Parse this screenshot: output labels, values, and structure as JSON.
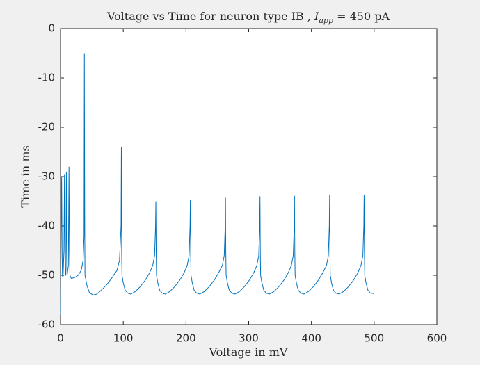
{
  "chart_data": {
    "type": "line",
    "title": [
      "Voltage vs Time for neuron type IB , ",
      "I",
      "app",
      " = 450 pA"
    ],
    "xlabel": "Voltage in mV",
    "ylabel": "Time in ms",
    "xlim": [
      0,
      600
    ],
    "xticks": [
      0,
      100,
      200,
      300,
      400,
      500,
      600
    ],
    "ylim": [
      -60,
      0
    ],
    "yticks": [
      -60,
      -50,
      -40,
      -30,
      -20,
      -10,
      0
    ],
    "grid": false,
    "series": [
      {
        "color": "#0072bd",
        "x": [
          0,
          0.5,
          1,
          1.8,
          2.5,
          3,
          4,
          5.5,
          6.3,
          7,
          7.5,
          8.5,
          9.3,
          10,
          10.5,
          12.5,
          13.5,
          14.3,
          15,
          17,
          22,
          28,
          33,
          36,
          37.5,
          38,
          38.6,
          39,
          42,
          46,
          52,
          58,
          65,
          73,
          82,
          90,
          94,
          96.5,
          97,
          97.5,
          98,
          100,
          103,
          107,
          112,
          119,
          127,
          135,
          142,
          147,
          150,
          151.5,
          152,
          152.5,
          153,
          155,
          158,
          162,
          167,
          174,
          182,
          190,
          197,
          202,
          205,
          206.5,
          207,
          207.5,
          208,
          210,
          213,
          217,
          222,
          229,
          237,
          245,
          252,
          258,
          261,
          262.5,
          263,
          263.5,
          264,
          266,
          269,
          273,
          278,
          285,
          293,
          301,
          308,
          313,
          316,
          317.5,
          318,
          318.5,
          319,
          321,
          324,
          328,
          333,
          340,
          348,
          356,
          363,
          368,
          371,
          372.5,
          373,
          373.5,
          374,
          376,
          379,
          383,
          388,
          395,
          403,
          411,
          418,
          424,
          427,
          428.5,
          429,
          429.5,
          430,
          432,
          435,
          439,
          444,
          451,
          459,
          467,
          474,
          479,
          482,
          483.5,
          484,
          484.5,
          485,
          487,
          490,
          494,
          500
        ],
        "values": [
          -58,
          -50,
          -40,
          -30,
          -45,
          -50,
          -50.5,
          -45,
          -29.5,
          -45,
          -50,
          -50,
          -29,
          -45,
          -50,
          -48,
          -28,
          -45,
          -50,
          -50.6,
          -50.5,
          -50,
          -49,
          -47,
          -42,
          -5,
          -40,
          -50,
          -52,
          -53.5,
          -54,
          -53.8,
          -53,
          -52,
          -50.5,
          -49,
          -47,
          -40,
          -24,
          -45,
          -50,
          -51.5,
          -53,
          -53.6,
          -53.8,
          -53.3,
          -52.3,
          -51,
          -49.5,
          -48,
          -46,
          -40,
          -35,
          -45,
          -50,
          -51.5,
          -53,
          -53.6,
          -53.8,
          -53.3,
          -52.3,
          -51,
          -49.5,
          -48,
          -46,
          -40,
          -34.7,
          -45,
          -50,
          -51.5,
          -53,
          -53.6,
          -53.8,
          -53.3,
          -52.3,
          -51,
          -49.5,
          -48,
          -46,
          -40,
          -34.3,
          -45,
          -50,
          -51.5,
          -53,
          -53.6,
          -53.8,
          -53.3,
          -52.3,
          -51,
          -49.5,
          -48,
          -46,
          -40,
          -34,
          -45,
          -50,
          -51.5,
          -53,
          -53.6,
          -53.8,
          -53.3,
          -52.3,
          -51,
          -49.5,
          -48,
          -46,
          -40,
          -33.9,
          -45,
          -50,
          -51.5,
          -53,
          -53.6,
          -53.8,
          -53.3,
          -52.3,
          -51,
          -49.5,
          -48,
          -46,
          -40,
          -33.8,
          -45,
          -50,
          -51.5,
          -53,
          -53.6,
          -53.8,
          -53.3,
          -52.3,
          -51,
          -49.5,
          -48,
          -46,
          -40,
          -33.7,
          -45,
          -50,
          -51.5,
          -53,
          -53.6,
          -53.7
        ]
      }
    ]
  }
}
